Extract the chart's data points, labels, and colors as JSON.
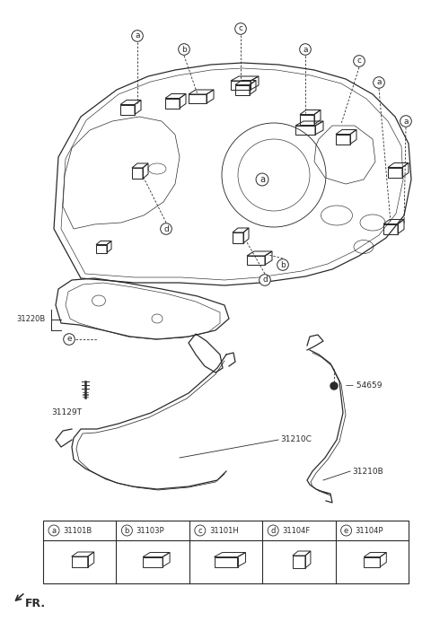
{
  "bg_color": "#ffffff",
  "line_color": "#2a2a2a",
  "legend_items": [
    {
      "letter": "a",
      "part": "31101B"
    },
    {
      "letter": "b",
      "part": "31103P"
    },
    {
      "letter": "c",
      "part": "31101H"
    },
    {
      "letter": "d",
      "part": "31104F"
    },
    {
      "letter": "e",
      "part": "31104P"
    }
  ]
}
